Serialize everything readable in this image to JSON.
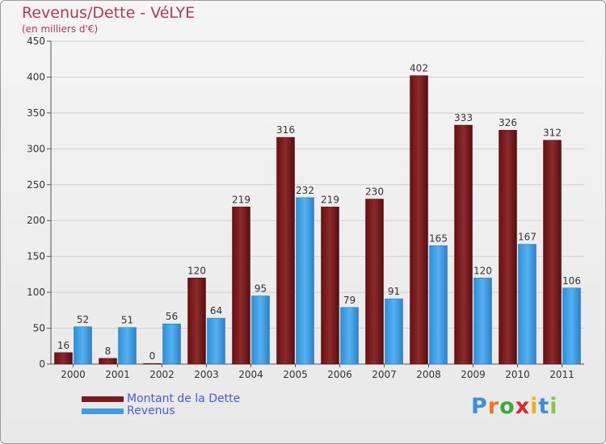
{
  "chart_data": {
    "type": "bar",
    "title": "Revenus/Dette - VéLYE",
    "subtitle": "(en milliers d'€)",
    "categories": [
      "2000",
      "2001",
      "2002",
      "2003",
      "2004",
      "2005",
      "2006",
      "2007",
      "2008",
      "2009",
      "2010",
      "2011"
    ],
    "series": [
      {
        "name": "Montant de la Dette",
        "color": "#7a1a1c",
        "values": [
          16,
          8,
          0,
          120,
          219,
          316,
          219,
          230,
          402,
          333,
          326,
          312
        ]
      },
      {
        "name": "Revenus",
        "color": "#3d9ee5",
        "values": [
          52,
          51,
          56,
          64,
          95,
          232,
          79,
          91,
          165,
          120,
          167,
          106
        ]
      }
    ],
    "ylim": [
      0,
      450
    ],
    "yticks": [
      0,
      50,
      100,
      150,
      200,
      250,
      300,
      350,
      400,
      450
    ],
    "grid": true,
    "legend": "bottom-left"
  },
  "logo": {
    "letters": [
      "P",
      "r",
      "o",
      "x",
      "i",
      "t",
      "i"
    ],
    "colors": [
      "#3a8fd8",
      "#e87a1e",
      "#3aaa3a",
      "#d92b2b",
      "#e8b21e",
      "#3a8fd8",
      "#8bc34a"
    ]
  }
}
